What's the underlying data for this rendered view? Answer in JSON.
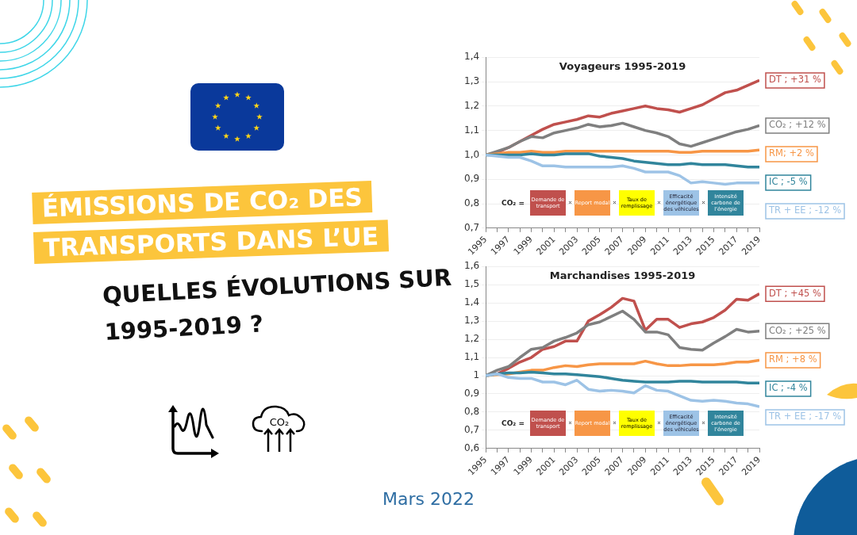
{
  "chart_data": [
    {
      "type": "other",
      "title": "ÉMISSIONS DE CO₂ DES TRANSPORTS DANS L’UE",
      "subtitle": "QUELLES ÉVOLUTIONS SUR 1995-2019 ?",
      "annotations": [
        "CO₂",
        "Mars 2022"
      ]
    },
    {
      "type": "line",
      "title": "Voyageurs 1995-2019",
      "x": [
        1995,
        1996,
        1997,
        1998,
        1999,
        2000,
        2001,
        2002,
        2003,
        2004,
        2005,
        2006,
        2007,
        2008,
        2009,
        2010,
        2011,
        2012,
        2013,
        2014,
        2015,
        2016,
        2017,
        2018,
        2019
      ],
      "series": [
        {
          "name": "DT ; +31 %",
          "color": "#c0504d",
          "values": [
            1.0,
            1.01,
            1.03,
            1.055,
            1.08,
            1.105,
            1.125,
            1.135,
            1.145,
            1.16,
            1.155,
            1.17,
            1.18,
            1.19,
            1.2,
            1.19,
            1.185,
            1.175,
            1.19,
            1.205,
            1.23,
            1.255,
            1.265,
            1.285,
            1.305
          ]
        },
        {
          "name": "CO₂ ; +12 %",
          "color": "#7f7f7f",
          "values": [
            1.0,
            1.015,
            1.03,
            1.055,
            1.075,
            1.07,
            1.09,
            1.1,
            1.11,
            1.125,
            1.115,
            1.12,
            1.13,
            1.115,
            1.1,
            1.09,
            1.075,
            1.045,
            1.035,
            1.05,
            1.065,
            1.08,
            1.095,
            1.105,
            1.12
          ]
        },
        {
          "name": "RM; +2 %",
          "color": "#f79646",
          "values": [
            1.0,
            1.005,
            1.01,
            1.01,
            1.015,
            1.01,
            1.01,
            1.015,
            1.015,
            1.015,
            1.015,
            1.015,
            1.015,
            1.015,
            1.015,
            1.015,
            1.015,
            1.01,
            1.01,
            1.015,
            1.015,
            1.015,
            1.015,
            1.015,
            1.02
          ]
        },
        {
          "name": "IC ; -5 %",
          "color": "#31859c",
          "values": [
            1.0,
            1.0,
            1.0,
            1.0,
            1.005,
            1.0,
            1.0,
            1.005,
            1.005,
            1.005,
            0.995,
            0.99,
            0.985,
            0.975,
            0.97,
            0.965,
            0.96,
            0.96,
            0.965,
            0.96,
            0.96,
            0.96,
            0.955,
            0.95,
            0.95
          ]
        },
        {
          "name": "TR + EE ; -12 %",
          "color": "#9dc3e6",
          "values": [
            1.0,
            0.995,
            0.99,
            0.99,
            0.975,
            0.955,
            0.955,
            0.95,
            0.95,
            0.95,
            0.95,
            0.95,
            0.955,
            0.945,
            0.93,
            0.93,
            0.93,
            0.915,
            0.885,
            0.89,
            0.885,
            0.88,
            0.885,
            0.885,
            0.885
          ]
        }
      ],
      "xlim": [
        1995,
        2019
      ],
      "xticks": [
        1995,
        {
          "value": 1996,
          "label": null
        },
        1997,
        {
          "value": 1998,
          "label": null
        },
        1999,
        {
          "value": 2000,
          "label": null
        },
        2001,
        {
          "value": 2002,
          "label": null
        },
        2003,
        {
          "value": 2004,
          "label": null
        },
        2005,
        {
          "value": 2006,
          "label": null
        },
        2007,
        {
          "value": 2008,
          "label": null
        },
        2009,
        {
          "value": 2010,
          "label": null
        },
        2011,
        {
          "value": 2012,
          "label": null
        },
        2013,
        {
          "value": 2014,
          "label": null
        },
        2015,
        {
          "value": 2016,
          "label": null
        },
        2017,
        {
          "value": 2018,
          "label": null
        },
        2019
      ],
      "ylim": [
        0.7,
        1.4
      ],
      "yticks": [
        {
          "value": 0.7,
          "label": "0,7"
        },
        {
          "value": 0.8,
          "label": "0,8"
        },
        {
          "value": 0.9,
          "label": "0,9"
        },
        {
          "value": 1.0,
          "label": "1,0"
        },
        {
          "value": 1.1,
          "label": "1,1"
        },
        {
          "value": 1.2,
          "label": "1,2"
        },
        {
          "value": 1.3,
          "label": "1,3"
        },
        {
          "value": 1.4,
          "label": "1,4"
        }
      ],
      "grid": "y",
      "legend": "right",
      "annotations": [
        "CO₂ =",
        "Demande de transport",
        "Report modal",
        "Taux de remplissage",
        "Efficacité énergétique des véhicules",
        "Intensité carbone de l’énergie"
      ]
    },
    {
      "type": "line",
      "title": "Marchandises 1995-2019",
      "x": [
        1995,
        1996,
        1997,
        1998,
        1999,
        2000,
        2001,
        2002,
        2003,
        2004,
        2005,
        2006,
        2007,
        2008,
        2009,
        2010,
        2011,
        2012,
        2013,
        2014,
        2015,
        2016,
        2017,
        2018,
        2019
      ],
      "series": [
        {
          "name": "DT ; +45 %",
          "color": "#c0504d",
          "values": [
            1.0,
            1.01,
            1.04,
            1.075,
            1.1,
            1.145,
            1.16,
            1.19,
            1.19,
            1.3,
            1.335,
            1.375,
            1.425,
            1.41,
            1.25,
            1.31,
            1.31,
            1.265,
            1.285,
            1.295,
            1.32,
            1.36,
            1.42,
            1.415,
            1.45
          ]
        },
        {
          "name": "CO₂ ; +25 %",
          "color": "#7f7f7f",
          "values": [
            1.0,
            1.03,
            1.05,
            1.1,
            1.145,
            1.155,
            1.19,
            1.21,
            1.235,
            1.28,
            1.295,
            1.325,
            1.355,
            1.31,
            1.24,
            1.24,
            1.225,
            1.155,
            1.145,
            1.14,
            1.18,
            1.215,
            1.255,
            1.24,
            1.245
          ]
        },
        {
          "name": "RM ; +8 %",
          "color": "#f79646",
          "values": [
            1.0,
            1.005,
            1.01,
            1.02,
            1.03,
            1.03,
            1.045,
            1.055,
            1.05,
            1.06,
            1.065,
            1.065,
            1.065,
            1.065,
            1.08,
            1.065,
            1.055,
            1.055,
            1.06,
            1.06,
            1.06,
            1.065,
            1.075,
            1.075,
            1.085
          ]
        },
        {
          "name": "IC ; -4 %",
          "color": "#31859c",
          "values": [
            1.0,
            1.01,
            1.015,
            1.015,
            1.02,
            1.015,
            1.01,
            1.01,
            1.005,
            1.0,
            0.995,
            0.985,
            0.975,
            0.97,
            0.965,
            0.965,
            0.965,
            0.97,
            0.97,
            0.965,
            0.965,
            0.965,
            0.965,
            0.96,
            0.96
          ]
        },
        {
          "name": "TR + EE ; -17 %",
          "color": "#9dc3e6",
          "values": [
            1.0,
            1.01,
            0.99,
            0.985,
            0.985,
            0.965,
            0.965,
            0.95,
            0.975,
            0.925,
            0.915,
            0.92,
            0.915,
            0.905,
            0.945,
            0.92,
            0.915,
            0.89,
            0.865,
            0.86,
            0.865,
            0.86,
            0.85,
            0.845,
            0.83
          ]
        }
      ],
      "xlim": [
        1995,
        2019
      ],
      "xticks": [
        1995,
        {
          "value": 1996,
          "label": null
        },
        1997,
        {
          "value": 1998,
          "label": null
        },
        1999,
        {
          "value": 2000,
          "label": null
        },
        2001,
        {
          "value": 2002,
          "label": null
        },
        2003,
        {
          "value": 2004,
          "label": null
        },
        2005,
        {
          "value": 2006,
          "label": null
        },
        2007,
        {
          "value": 2008,
          "label": null
        },
        2009,
        {
          "value": 2010,
          "label": null
        },
        2011,
        {
          "value": 2012,
          "label": null
        },
        2013,
        {
          "value": 2014,
          "label": null
        },
        2015,
        {
          "value": 2016,
          "label": null
        },
        2017,
        {
          "value": 2018,
          "label": null
        },
        2019
      ],
      "ylim": [
        0.6,
        1.6
      ],
      "yticks": [
        {
          "value": 0.6,
          "label": "0,6"
        },
        {
          "value": 0.7,
          "label": "0,7"
        },
        {
          "value": 0.8,
          "label": "0,8"
        },
        {
          "value": 0.9,
          "label": "0,9"
        },
        1,
        {
          "value": 1.1,
          "label": "1,1"
        },
        {
          "value": 1.2,
          "label": "1,2"
        },
        {
          "value": 1.3,
          "label": "1,3"
        },
        {
          "value": 1.4,
          "label": "1,4"
        },
        {
          "value": 1.5,
          "label": "1,5"
        },
        {
          "value": 1.6,
          "label": "1,6"
        }
      ],
      "grid": "y",
      "legend": "right",
      "annotations": [
        "CO₂ =",
        "Demande de transport",
        "Report modal",
        "Taux de remplissage",
        "Efficacité énergétique des véhicules",
        "Intensité carbone de l’énergie"
      ]
    }
  ]
}
